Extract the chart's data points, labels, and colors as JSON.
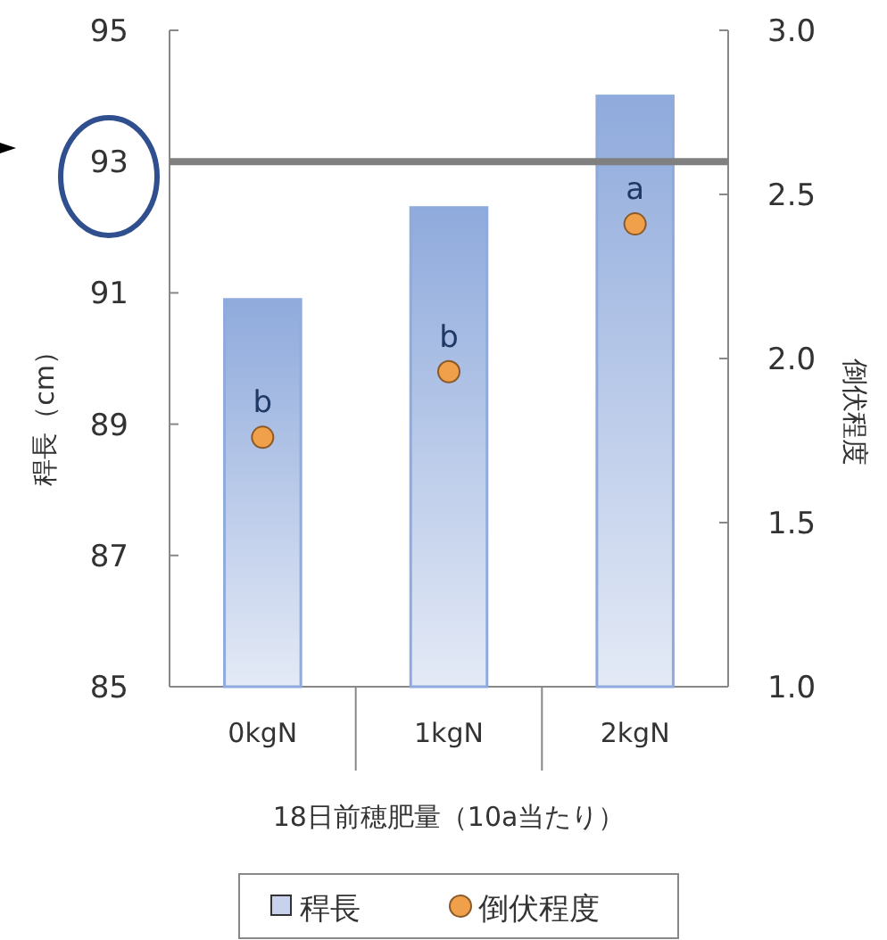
{
  "chart_data": {
    "type": "bar",
    "categories": [
      "0kgN",
      "1kgN",
      "2kgN"
    ],
    "xlabel": "18日前穂肥量（10a当たり）",
    "ylabel": "稈長（cm）",
    "y2label": "倒伏程度",
    "series": [
      {
        "name": "稈長",
        "type": "bar",
        "color": "#8faadc",
        "values": [
          90.9,
          92.3,
          94.0
        ]
      },
      {
        "name": "倒伏程度",
        "type": "scatter",
        "axis": "y2",
        "color": "#f0a04b",
        "values": [
          1.76,
          1.96,
          2.41
        ]
      }
    ],
    "ylim": [
      85,
      95
    ],
    "yticks": [
      85,
      87,
      89,
      91,
      93,
      95
    ],
    "y2lim": [
      1.0,
      3.0
    ],
    "y2ticks": [
      {
        "value": 1.0,
        "label": "1.0"
      },
      {
        "value": 1.5,
        "label": "1.5"
      },
      {
        "value": 2.0,
        "label": "2.0"
      },
      {
        "value": 2.5,
        "label": "2.5"
      },
      {
        "value": 3.0,
        "label": "3.0"
      }
    ],
    "ref_lines": [
      {
        "axis": "y",
        "value": 93,
        "color": "#808080"
      }
    ],
    "annotations": [
      "b",
      "b",
      "a"
    ],
    "marker": "circle",
    "grid": false,
    "legend": "bottom"
  }
}
